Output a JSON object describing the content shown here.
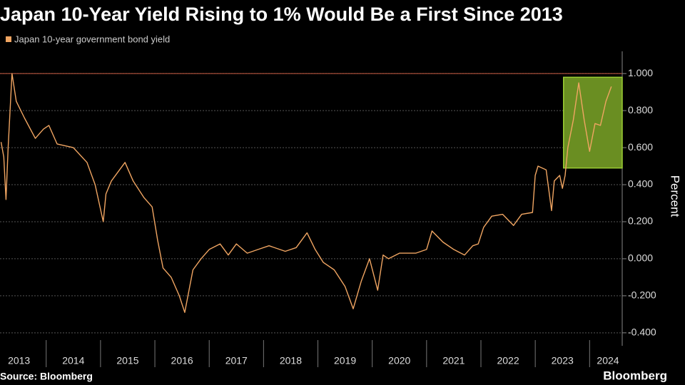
{
  "chart_data": {
    "type": "line",
    "title": "Japan 10-Year Yield Rising to 1% Would Be a First Since 2013",
    "y_label": "Percent",
    "source": "Source: Bloomberg",
    "brand": "Bloomberg",
    "series": [
      {
        "name": "Japan 10-year government bond yield",
        "color": "#f0a562",
        "x": [
          2013.17,
          2013.22,
          2013.26,
          2013.3,
          2013.37,
          2013.45,
          2013.6,
          2013.8,
          2013.95,
          2014.05,
          2014.2,
          2014.5,
          2014.75,
          2014.9,
          2015.05,
          2015.1,
          2015.2,
          2015.45,
          2015.6,
          2015.8,
          2015.95,
          2016.05,
          2016.15,
          2016.3,
          2016.45,
          2016.55,
          2016.7,
          2016.85,
          2017.0,
          2017.2,
          2017.35,
          2017.5,
          2017.7,
          2017.9,
          2018.1,
          2018.4,
          2018.6,
          2018.8,
          2018.95,
          2019.1,
          2019.3,
          2019.5,
          2019.65,
          2019.8,
          2019.95,
          2020.1,
          2020.2,
          2020.3,
          2020.5,
          2020.8,
          2021.0,
          2021.1,
          2021.3,
          2021.5,
          2021.7,
          2021.85,
          2021.95,
          2022.05,
          2022.2,
          2022.4,
          2022.6,
          2022.75,
          2022.95,
          2023.0,
          2023.05,
          2023.2,
          2023.3,
          2023.35,
          2023.45,
          2023.5,
          2023.55,
          2023.6,
          2023.7,
          2023.8,
          2023.9,
          2024.0,
          2024.1,
          2024.2,
          2024.3,
          2024.4
        ],
        "values": [
          0.63,
          0.55,
          0.32,
          0.6,
          1.0,
          0.85,
          0.76,
          0.65,
          0.7,
          0.72,
          0.62,
          0.6,
          0.52,
          0.4,
          0.2,
          0.35,
          0.42,
          0.52,
          0.42,
          0.33,
          0.28,
          0.1,
          -0.05,
          -0.1,
          -0.2,
          -0.29,
          -0.06,
          0.0,
          0.05,
          0.08,
          0.02,
          0.08,
          0.03,
          0.05,
          0.07,
          0.04,
          0.06,
          0.14,
          0.05,
          -0.02,
          -0.06,
          -0.15,
          -0.27,
          -0.12,
          0.0,
          -0.17,
          0.02,
          0.0,
          0.03,
          0.03,
          0.05,
          0.15,
          0.09,
          0.05,
          0.02,
          0.07,
          0.08,
          0.17,
          0.23,
          0.24,
          0.18,
          0.24,
          0.25,
          0.45,
          0.5,
          0.48,
          0.26,
          0.42,
          0.45,
          0.38,
          0.45,
          0.6,
          0.75,
          0.95,
          0.75,
          0.58,
          0.73,
          0.72,
          0.85,
          0.93
        ]
      }
    ],
    "xlim": [
      2013.15,
      2024.6
    ],
    "xticks": [
      2013,
      2014,
      2015,
      2016,
      2017,
      2018,
      2019,
      2020,
      2021,
      2022,
      2023,
      2024
    ],
    "ylim": [
      -0.47,
      1.12
    ],
    "yticks": [
      {
        "value": -0.4,
        "label": "-0.400"
      },
      {
        "value": -0.2,
        "label": "-0.200"
      },
      {
        "value": 0,
        "label": "0.000"
      },
      {
        "value": 0.2,
        "label": "0.200"
      },
      {
        "value": 0.4,
        "label": "0.400"
      },
      {
        "value": 0.6,
        "label": "0.600"
      },
      {
        "value": 0.8,
        "label": "0.800"
      },
      {
        "value": 1,
        "label": "1.000"
      }
    ],
    "grid": true,
    "reference_line": {
      "value": 1,
      "color": "#b5533c"
    },
    "highlight": {
      "xlim": [
        2023.52,
        2024.6
      ],
      "ylim": [
        0.49,
        0.98
      ],
      "color": "#6a8e22"
    }
  }
}
